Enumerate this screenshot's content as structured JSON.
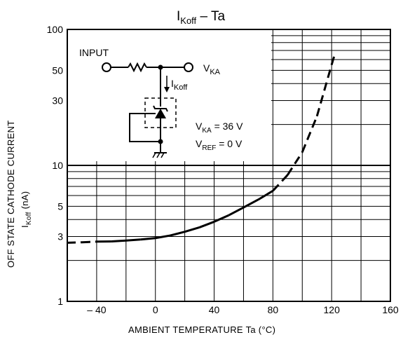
{
  "chart_data": {
    "type": "line",
    "title": {
      "prefix": "I",
      "sub": "Koff",
      "suffix": " – Ta"
    },
    "xlabel": "AMBIENT TEMPERATURE   Ta   (°C)",
    "ylabel": {
      "line1": "OFF STATE CATHODE CURRENT",
      "prefix": "I",
      "sub": "Koff",
      "unit": "  (nA)"
    },
    "xlim": [
      -60,
      160
    ],
    "ylim": [
      1,
      100
    ],
    "yscale": "log",
    "x_ticks": [
      -40,
      0,
      40,
      80,
      120,
      160
    ],
    "x_tick_labels": [
      "– 40",
      "0",
      "40",
      "80",
      "120",
      "160"
    ],
    "y_tick_values": [
      1,
      3,
      5,
      10,
      30,
      50,
      100
    ],
    "y_tick_labels": [
      "1",
      "3",
      "5",
      "10",
      "30",
      "50",
      "100"
    ],
    "grid": true,
    "series": [
      {
        "x": [
          -60,
          -50,
          -40,
          -30,
          -20,
          -10,
          0,
          10,
          20,
          30,
          40,
          50,
          60,
          70,
          80,
          90,
          100,
          110,
          120,
          122
        ],
        "y": [
          2.7,
          2.72,
          2.75,
          2.76,
          2.8,
          2.85,
          2.92,
          3.05,
          3.25,
          3.5,
          3.85,
          4.3,
          4.9,
          5.6,
          6.5,
          8.5,
          12.5,
          23,
          55,
          65
        ],
        "dashed_ranges": [
          [
            -60,
            -40
          ],
          [
            80,
            122
          ]
        ]
      }
    ],
    "inset_circuit": {
      "input_label": "INPUT",
      "vka_prefix": "V",
      "vka_sub": "KA",
      "current_prefix": "I",
      "current_sub": "Koff",
      "cond1": {
        "prefix": "V",
        "sub": "KA",
        "value": " = 36 V"
      },
      "cond2": {
        "prefix": "V",
        "sub": "REF",
        "value": " = 0 V"
      }
    }
  }
}
